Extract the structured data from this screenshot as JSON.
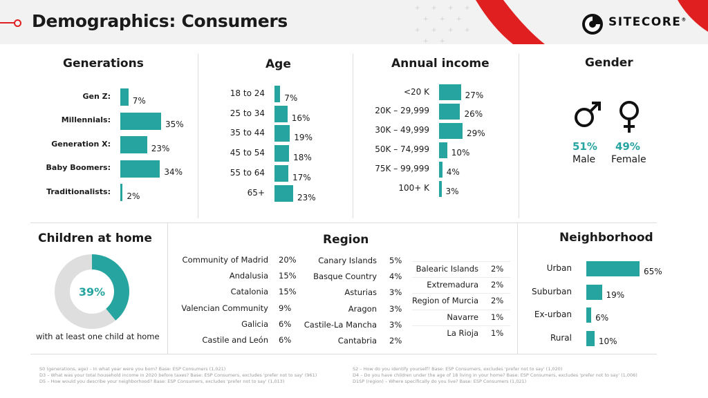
{
  "header": {
    "title": "Demographics: Consumers",
    "brand": "SITECORE",
    "brand_mark": "®"
  },
  "colors": {
    "accent": "#26a5a0",
    "red": "#e02020",
    "donut_rest": "#dedede"
  },
  "chart_data": [
    {
      "type": "bar",
      "title": "Generations",
      "categories": [
        "Gen Z:",
        "Millennials:",
        "Generation X:",
        "Baby Boomers:",
        "Traditionalists:"
      ],
      "values": [
        7,
        35,
        23,
        34,
        2
      ],
      "labels": [
        "7%",
        "35%",
        "23%",
        "34%",
        "2%"
      ],
      "max": 35
    },
    {
      "type": "bar",
      "title": "Age",
      "categories": [
        "18 to 24",
        "25 to 34",
        "35 to 44",
        "45 to 54",
        "55 to 64",
        "65+"
      ],
      "values": [
        7,
        16,
        19,
        18,
        17,
        23
      ],
      "labels": [
        "7%",
        "16%",
        "19%",
        "18%",
        "17%",
        "23%"
      ],
      "max": 23
    },
    {
      "type": "bar",
      "title": "Annual income",
      "categories": [
        "<20 K",
        "20K – 29,999",
        "30K – 49,999",
        "50K – 74,999",
        "75K – 99,999",
        "100+ K"
      ],
      "values": [
        27,
        26,
        29,
        10,
        4,
        3
      ],
      "labels": [
        "27%",
        "26%",
        "29%",
        "10%",
        "4%",
        "3%"
      ],
      "max": 29
    },
    {
      "type": "table",
      "title": "Gender",
      "categories": [
        "Male",
        "Female"
      ],
      "values": [
        51,
        49
      ],
      "labels": [
        "51%",
        "49%"
      ]
    },
    {
      "type": "pie",
      "title": "Children at home",
      "values": [
        39,
        61
      ],
      "center_label": "39%",
      "caption": "with at least one child at home"
    },
    {
      "type": "table",
      "title": "Region",
      "columns": [
        {
          "names": [
            "Community of Madrid",
            "Andalusia",
            "Catalonia",
            "Valencian Community",
            "Galicia",
            "Castile and León"
          ],
          "values": [
            "20%",
            "15%",
            "15%",
            "9%",
            "6%",
            "6%"
          ]
        },
        {
          "names": [
            "Canary Islands",
            "Basque Country",
            "Asturias",
            "Aragon",
            "Castile-La Mancha",
            "Cantabria"
          ],
          "values": [
            "5%",
            "4%",
            "3%",
            "3%",
            "3%",
            "2%"
          ]
        },
        {
          "names": [
            "Balearic Islands",
            "Extremadura",
            "Region of Murcia",
            "Navarre",
            "La Rioja"
          ],
          "values": [
            "2%",
            "2%",
            "2%",
            "1%",
            "1%"
          ]
        }
      ]
    },
    {
      "type": "bar",
      "title": "Neighborhood",
      "categories": [
        "Urban",
        "Suburban",
        "Ex-urban",
        "Rural"
      ],
      "values": [
        65,
        19,
        6,
        10
      ],
      "labels": [
        "65%",
        "19%",
        "6%",
        "10%"
      ],
      "max": 65
    }
  ],
  "footnotes": {
    "left": [
      "S0 (generations, age) – In what year were you born? Base: ESP Consumers (1,021)",
      "D3 – What was your total household income in 2020 before taxes? Base: ESP Consumers, excludes 'prefer not to say' (961)",
      "D5 – How would you describe your neighborhood? Base: ESP Consumers, excludes 'prefer not to say' (1,013)"
    ],
    "right": [
      "S2 – How do you identify yourself? Base: ESP Consumers, excludes 'prefer not to say' (1,020)",
      "D4 – Do you have children under the age of 18 living in your home? Base: ESP Consumers, excludes 'prefer not to say' (1,006)",
      "D1SP (region) – Where specifically do you live? Base: ESP Consumers (1,021)"
    ]
  }
}
